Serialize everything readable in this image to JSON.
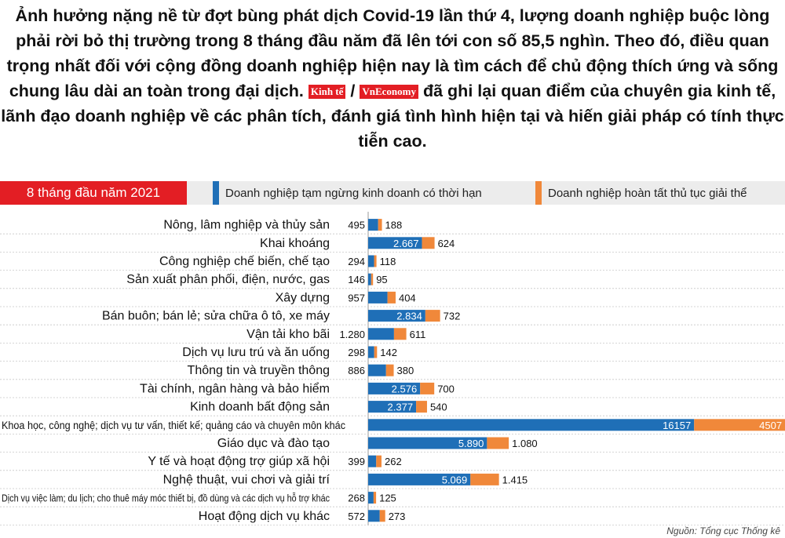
{
  "intro": {
    "part1": "Ảnh hưởng nặng nề từ đợt bùng phát dịch Covid-19 lần thứ 4, lượng doanh nghiệp buộc lòng phải rời bỏ thị trường trong 8 tháng đầu năm đã lên tới con số 85,5 nghìn. Theo đó, điều quan trọng nhất đối với cộng đồng doanh nghiệp hiện nay là tìm cách để chủ động thích ứng và sống chung lâu dài an toàn trong đại dịch.",
    "logo1": "Kinh tế",
    "slash": "/",
    "logo2": "VnEconomy",
    "part2": "đã ghi lại quan điểm của chuyên gia kinh tế, lãnh đạo doanh nghiệp về các phân tích, đánh giá tình hình hiện tại và hiến giải pháp có tính thực tiễn cao."
  },
  "colors": {
    "red": "#e31e24",
    "blue": "#1f6fb7",
    "orange": "#f0883a"
  },
  "chart_data": {
    "type": "bar",
    "title": "8 tháng đầu năm 2021",
    "source": "Nguồn: Tổng cục Thống kê",
    "categories": [
      "Nông, lâm nghiệp và thủy sản",
      "Khai khoáng",
      "Công nghiệp chế biến, chế tạo",
      "Sản xuất phân phối, điện, nước, gas",
      "Xây dựng",
      "Bán buôn; bán lẻ; sửa chữa ô tô, xe máy",
      "Vận tải kho bãi",
      "Dịch vụ lưu trú và ăn uống",
      "Thông tin và truyền thông",
      "Tài chính, ngân hàng và bảo hiểm",
      "Kinh doanh bất động sản",
      "Khoa học, công nghệ; dịch vụ tư vấn, thiết kế; quảng cáo và chuyên môn khác",
      "Giáo dục và đào tạo",
      "Y tế và hoạt động trợ giúp xã hội",
      "Nghệ thuật, vui chơi và giải trí",
      "Dịch vụ việc làm; du lịch; cho thuê máy móc thiết bị, đồ dùng và các dịch vụ hỗ trợ khác",
      "Hoạt động dịch vụ khác"
    ],
    "series": [
      {
        "name": "Doanh nghiệp tạm ngừng kinh doanh có thời hạn",
        "values": [
          495,
          2667,
          294,
          146,
          957,
          2834,
          1280,
          298,
          886,
          2576,
          2377,
          16157,
          5890,
          399,
          5069,
          268,
          572
        ],
        "labels": [
          "495",
          "2.667",
          "294",
          "146",
          "957",
          "2.834",
          "1.280",
          "298",
          "886",
          "2.576",
          "2.377",
          "16157",
          "5.890",
          "399",
          "5.069",
          "268",
          "572"
        ]
      },
      {
        "name": "Doanh nghiệp hoàn tất thủ tục giải thể",
        "values": [
          188,
          624,
          118,
          95,
          404,
          732,
          611,
          142,
          380,
          700,
          540,
          4507,
          1080,
          262,
          1415,
          125,
          273
        ],
        "labels": [
          "188",
          "624",
          "118",
          "95",
          "404",
          "732",
          "611",
          "142",
          "380",
          "700",
          "540",
          "4507",
          "1.080",
          "262",
          "1.415",
          "125",
          "273"
        ]
      }
    ]
  }
}
